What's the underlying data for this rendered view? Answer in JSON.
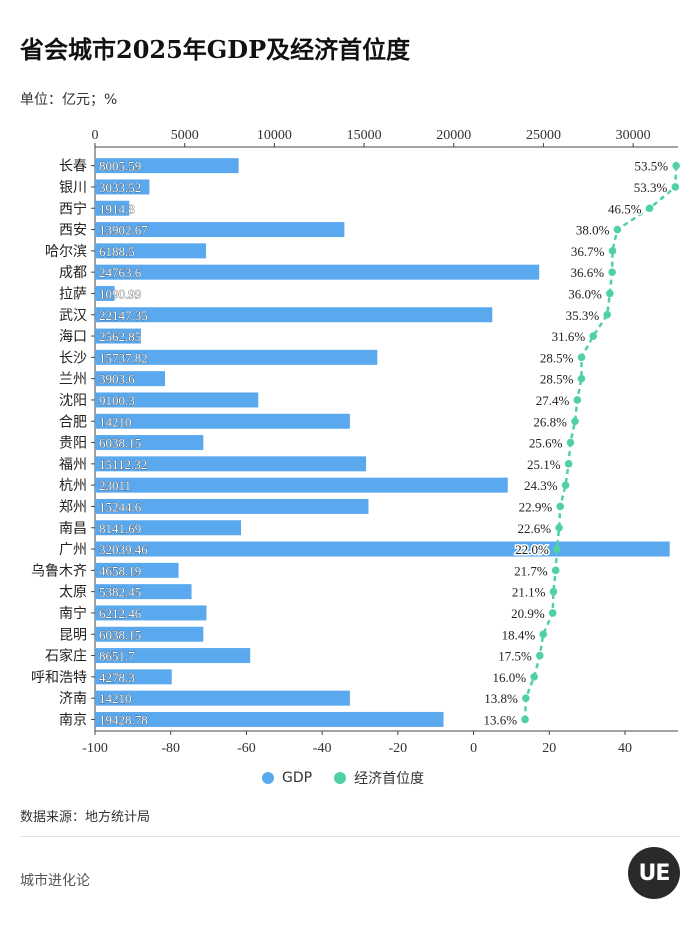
{
  "title": "省会城市2025年GDP及经济首位度",
  "unit_label": "单位：亿元；%",
  "source": "数据来源：地方统计局",
  "brand": "城市进化论",
  "logo_text": "UE",
  "legend": {
    "gdp": "GDP",
    "primacy": "经济首位度"
  },
  "colors": {
    "bar": "#5aa9ef",
    "line": "#4fd1a5",
    "text": "#222222"
  },
  "chart_data": {
    "type": "bar",
    "categories": [
      "长春",
      "银川",
      "西宁",
      "西安",
      "哈尔滨",
      "成都",
      "拉萨",
      "武汉",
      "海口",
      "长沙",
      "兰州",
      "沈阳",
      "合肥",
      "贵阳",
      "福州",
      "杭州",
      "郑州",
      "南昌",
      "广州",
      "乌鲁木齐",
      "太原",
      "南宁",
      "昆明",
      "石家庄",
      "呼和浩特",
      "济南",
      "南京"
    ],
    "gdp_labels": [
      "8005.59",
      "3033.52",
      "1914.8",
      "13902.67",
      "6188.5",
      "24763.6",
      "1090.99",
      "22147.35",
      "2562.85",
      "15737.82",
      "3903.6",
      "9100.3",
      "14210",
      "6038.15",
      "15112.32",
      "23011",
      "15244.6",
      "8141.69",
      "32039.46",
      "4658.19",
      "5382.45",
      "6212.46",
      "6038.15",
      "8651.7",
      "4278.3",
      "14210",
      "19428.78"
    ],
    "series": [
      {
        "name": "GDP",
        "type": "bar",
        "values": [
          8005.59,
          3033.52,
          1914.8,
          13902.67,
          6188.5,
          24763.6,
          1090.99,
          22147.35,
          2562.85,
          15737.82,
          3903.6,
          9100.3,
          14210,
          6038.15,
          15112.32,
          23011,
          15244.6,
          8141.69,
          32039.46,
          4658.19,
          5382.45,
          6212.46,
          6038.15,
          8651.7,
          4278.3,
          14210,
          19428.78
        ]
      },
      {
        "name": "经济首位度",
        "type": "line",
        "values": [
          53.5,
          53.3,
          46.5,
          38.0,
          36.7,
          36.6,
          36.0,
          35.3,
          31.6,
          28.5,
          28.5,
          27.4,
          26.8,
          25.6,
          25.1,
          24.3,
          22.9,
          22.6,
          22.0,
          21.7,
          21.1,
          20.9,
          18.4,
          17.5,
          16.0,
          13.8,
          13.6
        ]
      }
    ],
    "primacy_labels": [
      "53.5%",
      "53.3%",
      "46.5%",
      "38.0%",
      "36.7%",
      "36.6%",
      "36.0%",
      "35.3%",
      "31.6%",
      "28.5%",
      "28.5%",
      "27.4%",
      "26.8%",
      "25.6%",
      "25.1%",
      "24.3%",
      "22.9%",
      "22.6%",
      "22.0%",
      "21.7%",
      "21.1%",
      "20.9%",
      "18.4%",
      "17.5%",
      "16.0%",
      "13.8%",
      "13.6%"
    ],
    "top_axis": {
      "ticks": [
        "0",
        "5000",
        "10000",
        "15000",
        "20000",
        "25000",
        "30000"
      ],
      "tick_values": [
        0,
        5000,
        10000,
        15000,
        20000,
        25000,
        30000
      ],
      "range": [
        0,
        32500
      ]
    },
    "bottom_axis": {
      "ticks": [
        "-100",
        "-80",
        "-60",
        "-40",
        "-20",
        "0",
        "20",
        "40"
      ],
      "tick_values": [
        -100,
        -80,
        -60,
        -40,
        -20,
        0,
        20,
        40
      ],
      "range": [
        -100,
        54
      ]
    },
    "grid": false,
    "legend_position": "bottom-center"
  }
}
